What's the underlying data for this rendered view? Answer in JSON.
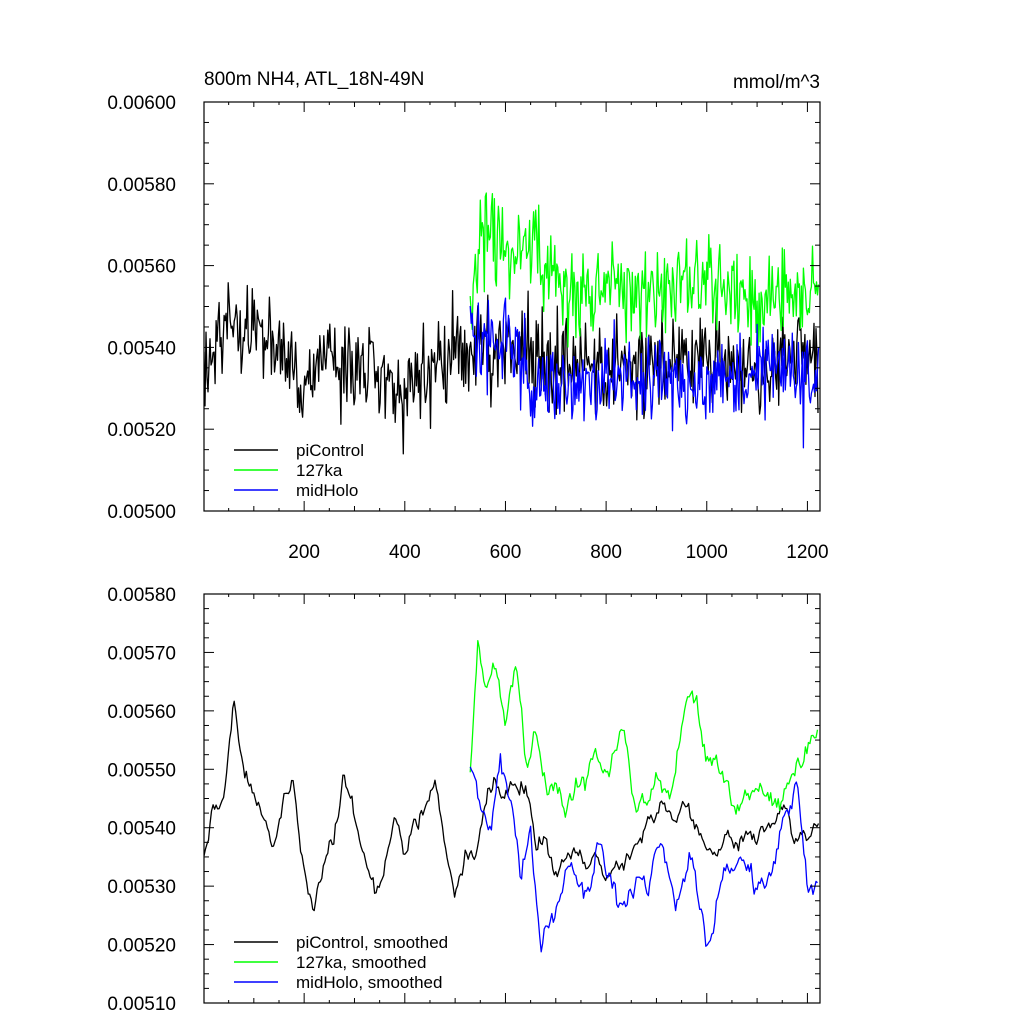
{
  "figure": {
    "title_left": "800m NH4, ATL_18N-49N",
    "title_right": "mmol/m^3"
  },
  "colors": {
    "piControl": "#000000",
    "127ka": "#00ff00",
    "midHolo": "#0000ff",
    "axis": "#000000"
  },
  "chart_data": [
    {
      "type": "line",
      "title": "800m NH4, ATL_18N-49N",
      "units": "mmol/m^3",
      "xlim": [
        1,
        1225
      ],
      "ylim": [
        0.005,
        0.006
      ],
      "x_ticks": [
        200,
        400,
        600,
        800,
        1000,
        1200
      ],
      "x_tick_labels": [
        "200",
        "400",
        "600",
        "800",
        "1000",
        "1200"
      ],
      "y_ticks": [
        0.005,
        0.0052,
        0.0054,
        0.0056,
        0.0058,
        0.006
      ],
      "y_tick_labels": [
        "0.00500",
        "0.00520",
        "0.00540",
        "0.00560",
        "0.00580",
        "0.00600"
      ],
      "legend_position": "bottom-left",
      "grid": false,
      "series": [
        {
          "name": "piControl",
          "color": "#000000",
          "x_range": [
            1,
            1222
          ],
          "mean": 0.00537,
          "amplitude": 0.00013,
          "noise": "high",
          "anchors": [
            [
              1,
              0.00534
            ],
            [
              50,
              0.00548
            ],
            [
              100,
              0.00545
            ],
            [
              150,
              0.0054
            ],
            [
              200,
              0.0053
            ],
            [
              250,
              0.0054
            ],
            [
              300,
              0.00532
            ],
            [
              350,
              0.00535
            ],
            [
              400,
              0.0053
            ],
            [
              450,
              0.00535
            ],
            [
              500,
              0.0054
            ],
            [
              530,
              0.0054
            ],
            [
              600,
              0.0054
            ],
            [
              700,
              0.00537
            ],
            [
              800,
              0.00534
            ],
            [
              900,
              0.00536
            ],
            [
              1000,
              0.00537
            ],
            [
              1100,
              0.00535
            ],
            [
              1200,
              0.00538
            ],
            [
              1222,
              0.00535
            ]
          ]
        },
        {
          "name": "127ka",
          "color": "#00ff00",
          "x_range": [
            530,
            1222
          ],
          "mean": 0.00555,
          "amplitude": 0.00013,
          "noise": "high",
          "anchors": [
            [
              530,
              0.00548
            ],
            [
              560,
              0.0057
            ],
            [
              600,
              0.00563
            ],
            [
              650,
              0.00565
            ],
            [
              700,
              0.00556
            ],
            [
              750,
              0.00552
            ],
            [
              800,
              0.00555
            ],
            [
              850,
              0.00554
            ],
            [
              900,
              0.00553
            ],
            [
              950,
              0.00556
            ],
            [
              1000,
              0.00557
            ],
            [
              1050,
              0.00553
            ],
            [
              1100,
              0.00552
            ],
            [
              1150,
              0.00554
            ],
            [
              1200,
              0.00553
            ],
            [
              1222,
              0.00556
            ]
          ]
        },
        {
          "name": "midHolo",
          "color": "#0000ff",
          "x_range": [
            530,
            1222
          ],
          "mean": 0.00535,
          "amplitude": 0.00013,
          "noise": "high",
          "anchors": [
            [
              530,
              0.00546
            ],
            [
              560,
              0.00538
            ],
            [
              600,
              0.00545
            ],
            [
              650,
              0.0053
            ],
            [
              700,
              0.00532
            ],
            [
              750,
              0.0053
            ],
            [
              800,
              0.00534
            ],
            [
              850,
              0.00532
            ],
            [
              900,
              0.00535
            ],
            [
              950,
              0.00531
            ],
            [
              1000,
              0.00532
            ],
            [
              1050,
              0.00532
            ],
            [
              1100,
              0.00534
            ],
            [
              1150,
              0.00538
            ],
            [
              1200,
              0.00531
            ],
            [
              1222,
              0.00532
            ]
          ]
        }
      ]
    },
    {
      "type": "line",
      "xlim": [
        1,
        1225
      ],
      "ylim": [
        0.0051,
        0.0058
      ],
      "x_ticks": [
        200,
        400,
        600,
        800,
        1000,
        1200
      ],
      "x_tick_labels": [],
      "y_ticks": [
        0.0051,
        0.0052,
        0.0053,
        0.0054,
        0.0055,
        0.0056,
        0.0057,
        0.0058
      ],
      "y_tick_labels": [
        "0.00510",
        "0.00520",
        "0.00530",
        "0.00540",
        "0.00550",
        "0.00560",
        "0.00570",
        "0.00580"
      ],
      "legend_position": "bottom-left",
      "grid": false,
      "series": [
        {
          "name": "piControl, smoothed",
          "color": "#000000",
          "x_range": [
            1,
            1222
          ],
          "amplitude": 4e-05,
          "noise": "low",
          "anchors": [
            [
              1,
              0.00536
            ],
            [
              20,
              0.00542
            ],
            [
              40,
              0.00545
            ],
            [
              60,
              0.0056
            ],
            [
              80,
              0.00548
            ],
            [
              100,
              0.00546
            ],
            [
              120,
              0.00544
            ],
            [
              140,
              0.00538
            ],
            [
              160,
              0.00545
            ],
            [
              180,
              0.00548
            ],
            [
              200,
              0.00532
            ],
            [
              220,
              0.00528
            ],
            [
              240,
              0.00535
            ],
            [
              260,
              0.00538
            ],
            [
              280,
              0.00548
            ],
            [
              300,
              0.00542
            ],
            [
              320,
              0.00533
            ],
            [
              340,
              0.0053
            ],
            [
              360,
              0.00534
            ],
            [
              380,
              0.0054
            ],
            [
              400,
              0.00538
            ],
            [
              420,
              0.0054
            ],
            [
              440,
              0.00542
            ],
            [
              460,
              0.00548
            ],
            [
              480,
              0.00536
            ],
            [
              500,
              0.00528
            ],
            [
              520,
              0.00536
            ],
            [
              540,
              0.00535
            ],
            [
              560,
              0.00545
            ],
            [
              580,
              0.00548
            ],
            [
              600,
              0.00545
            ],
            [
              620,
              0.00545
            ],
            [
              640,
              0.00548
            ],
            [
              660,
              0.00538
            ],
            [
              680,
              0.0054
            ],
            [
              700,
              0.00535
            ],
            [
              750,
              0.00535
            ],
            [
              800,
              0.00532
            ],
            [
              850,
              0.00536
            ],
            [
              900,
              0.0054
            ],
            [
              950,
              0.00544
            ],
            [
              1000,
              0.00538
            ],
            [
              1050,
              0.00536
            ],
            [
              1100,
              0.00538
            ],
            [
              1150,
              0.00542
            ],
            [
              1200,
              0.00536
            ],
            [
              1222,
              0.0054
            ]
          ]
        },
        {
          "name": "127ka, smoothed",
          "color": "#00ff00",
          "x_range": [
            530,
            1222
          ],
          "amplitude": 5e-05,
          "noise": "low",
          "anchors": [
            [
              530,
              0.00552
            ],
            [
              545,
              0.00572
            ],
            [
              560,
              0.00562
            ],
            [
              580,
              0.00568
            ],
            [
              600,
              0.00558
            ],
            [
              620,
              0.00566
            ],
            [
              640,
              0.00552
            ],
            [
              660,
              0.00558
            ],
            [
              680,
              0.00545
            ],
            [
              700,
              0.00548
            ],
            [
              720,
              0.00542
            ],
            [
              750,
              0.00546
            ],
            [
              780,
              0.00556
            ],
            [
              800,
              0.00552
            ],
            [
              830,
              0.00558
            ],
            [
              860,
              0.00546
            ],
            [
              900,
              0.0055
            ],
            [
              920,
              0.00548
            ],
            [
              950,
              0.00555
            ],
            [
              980,
              0.00562
            ],
            [
              1000,
              0.00552
            ],
            [
              1030,
              0.00548
            ],
            [
              1060,
              0.00544
            ],
            [
              1100,
              0.00546
            ],
            [
              1150,
              0.00545
            ],
            [
              1180,
              0.00552
            ],
            [
              1200,
              0.00554
            ],
            [
              1222,
              0.00556
            ]
          ]
        },
        {
          "name": "midHolo, smoothed",
          "color": "#0000ff",
          "x_range": [
            530,
            1222
          ],
          "amplitude": 5e-05,
          "noise": "low",
          "anchors": [
            [
              530,
              0.00553
            ],
            [
              550,
              0.00546
            ],
            [
              570,
              0.00538
            ],
            [
              590,
              0.00552
            ],
            [
              610,
              0.00545
            ],
            [
              630,
              0.0053
            ],
            [
              650,
              0.0054
            ],
            [
              670,
              0.0052
            ],
            [
              700,
              0.00528
            ],
            [
              730,
              0.00532
            ],
            [
              760,
              0.00528
            ],
            [
              790,
              0.00536
            ],
            [
              820,
              0.0053
            ],
            [
              850,
              0.00528
            ],
            [
              880,
              0.00532
            ],
            [
              910,
              0.00538
            ],
            [
              940,
              0.00528
            ],
            [
              970,
              0.00535
            ],
            [
              1000,
              0.0052
            ],
            [
              1030,
              0.0053
            ],
            [
              1060,
              0.00533
            ],
            [
              1100,
              0.0053
            ],
            [
              1140,
              0.00535
            ],
            [
              1180,
              0.00548
            ],
            [
              1200,
              0.0053
            ],
            [
              1222,
              0.00528
            ]
          ]
        }
      ]
    }
  ]
}
